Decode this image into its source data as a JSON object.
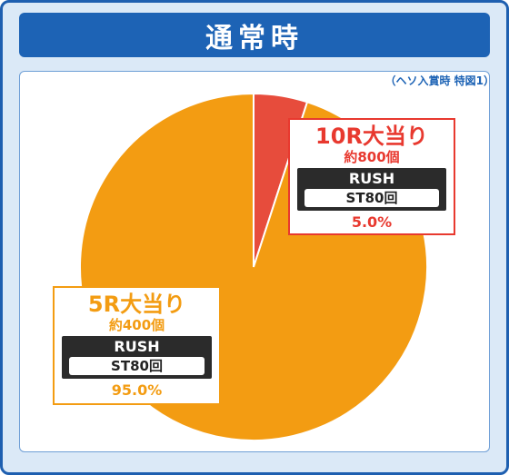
{
  "header": {
    "title": "通常時"
  },
  "note": "（ヘソ入賞時 特図1）",
  "colors": {
    "accent": "#1d63b5",
    "slice_small": "#e74c3c",
    "slice_large": "#f39c12"
  },
  "chart_data": {
    "type": "pie",
    "title": "通常時",
    "slices": [
      {
        "label": "10R大当り",
        "balls": "約800個",
        "rush": "RUSH",
        "st": "ST80回",
        "value": 5.0,
        "display": "5.0%",
        "color": "#e74c3c"
      },
      {
        "label": "5R大当り",
        "balls": "約400個",
        "rush": "RUSH",
        "st": "ST80回",
        "value": 95.0,
        "display": "95.0%",
        "color": "#f39c12"
      }
    ]
  }
}
